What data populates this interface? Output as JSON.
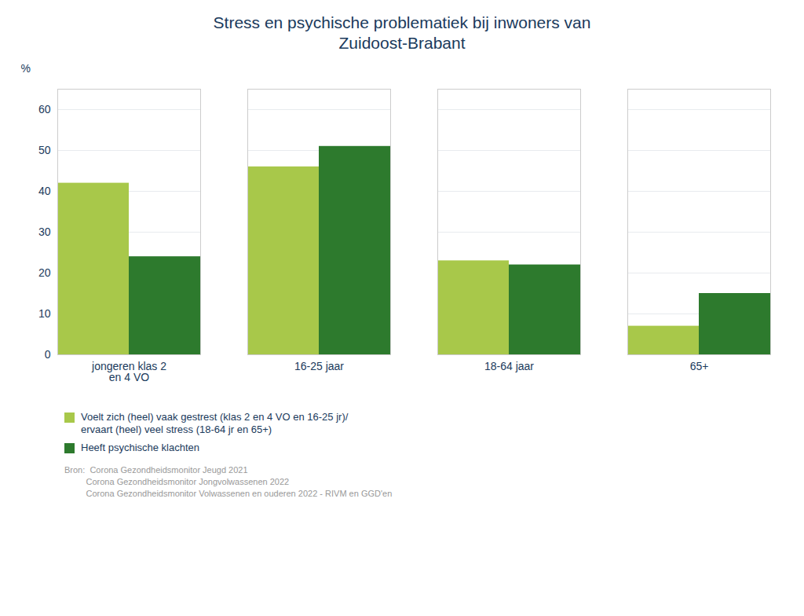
{
  "chart_data": {
    "type": "bar",
    "title": "Stress en psychische problematiek bij inwoners van\nZuidoost-Brabant",
    "categories": [
      "jongeren klas 2\nen 4 VO",
      "16-25 jaar",
      "18-64 jaar",
      "65+"
    ],
    "series": [
      {
        "name": "Voelt zich (heel) vaak gestrest (klas 2 en 4 VO en 16-25 jr)/\nervaart (heel) veel stress (18-64 jr en 65+)",
        "color": "#a8c84a",
        "values": [
          42,
          46,
          23,
          7
        ]
      },
      {
        "name": "Heeft psychische klachten",
        "color": "#2d7a2d",
        "values": [
          24,
          51,
          22,
          15
        ]
      }
    ],
    "ylabel": "%",
    "ylim": [
      0,
      65
    ],
    "yticks": [
      0,
      10,
      20,
      30,
      40,
      50,
      60
    ],
    "grid": true,
    "legend": "bottom",
    "annotations": [
      "Bron:  Corona Gezondheidsmonitor Jeugd 2021",
      "         Corona Gezondheidsmonitor Jongvolwassenen 2022",
      "         Corona Gezondheidsmonitor Volwassenen en ouderen 2022 - RIVM en GGD'en"
    ]
  }
}
